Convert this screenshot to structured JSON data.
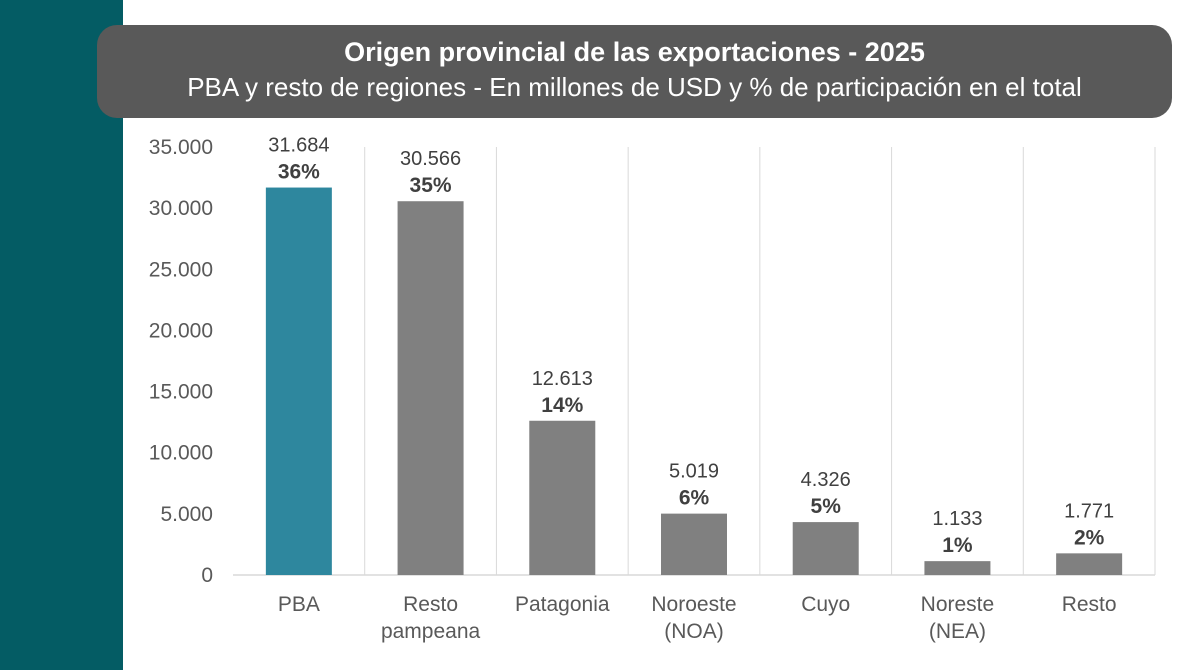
{
  "title": "Origen provincial de las exportaciones - 2025",
  "subtitle": "PBA y resto de regiones - En millones de USD y % de participación en el total",
  "colors": {
    "side_band": "#045c64",
    "title_box": "#595959",
    "highlight_bar": "#2e879e",
    "bar": "#808080",
    "gridline": "#d9d9d9"
  },
  "chart_data": {
    "type": "bar",
    "title": "Origen provincial de las exportaciones - 2025",
    "subtitle": "PBA y resto de regiones - En millones de USD y % de participación en el total",
    "categories": [
      [
        "PBA"
      ],
      [
        "Resto",
        "pampeana"
      ],
      [
        "Patagonia"
      ],
      [
        "Noroeste",
        "(NOA)"
      ],
      [
        "Cuyo"
      ],
      [
        "Noreste",
        "(NEA)"
      ],
      [
        "Resto"
      ]
    ],
    "values": [
      31684,
      30566,
      12613,
      5019,
      4326,
      1133,
      1771
    ],
    "value_labels": [
      "31.684",
      "30.566",
      "12.613",
      "5.019",
      "4.326",
      "1.133",
      "1.771"
    ],
    "percent_labels": [
      "36%",
      "35%",
      "14%",
      "6%",
      "5%",
      "1%",
      "2%"
    ],
    "highlight_index": 0,
    "ylim": [
      0,
      35000
    ],
    "y_ticks": [
      0,
      5000,
      10000,
      15000,
      20000,
      25000,
      30000,
      35000
    ],
    "y_tick_labels": [
      "0",
      "5.000",
      "10.000",
      "15.000",
      "20.000",
      "25.000",
      "30.000",
      "35.000"
    ],
    "grid": "vertical separators between categories",
    "legend": "none",
    "xlabel": "",
    "ylabel": ""
  }
}
